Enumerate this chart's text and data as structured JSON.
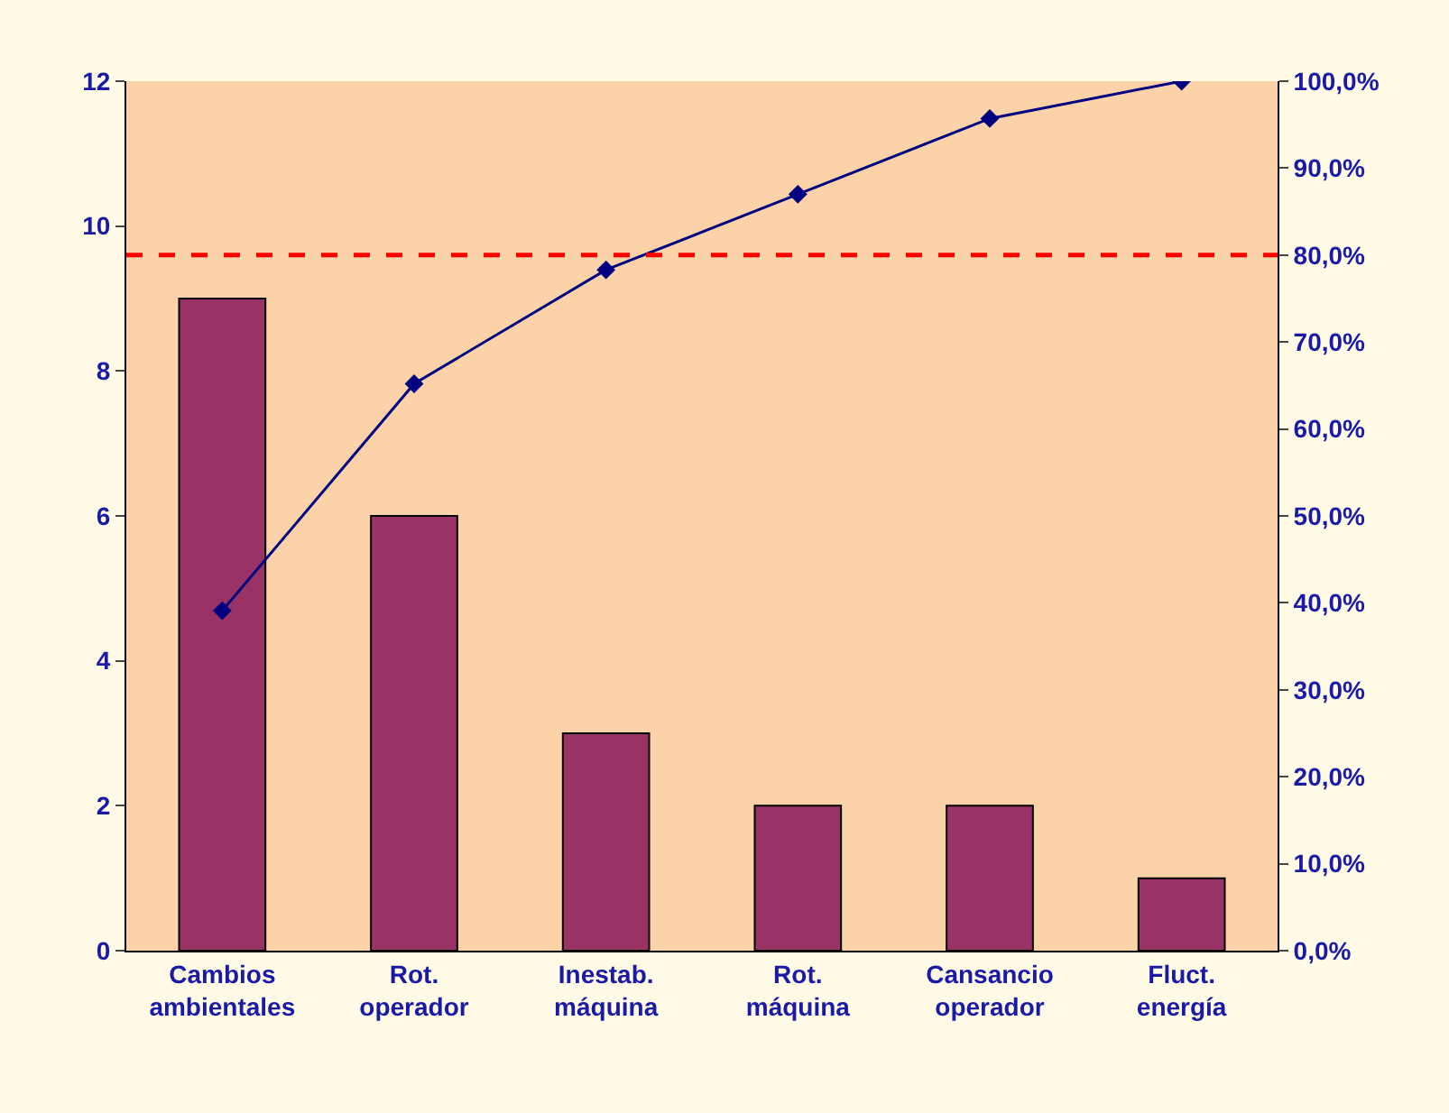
{
  "chart_data": {
    "type": "bar",
    "categories": [
      "Cambios ambientales",
      "Rot. operador",
      "Inestab. máquina",
      "Rot. máquina",
      "Cansancio operador",
      "Fluct. energía"
    ],
    "series": [
      {
        "color": "#993366",
        "values": [
          9,
          6,
          3,
          2,
          2,
          1
        ]
      },
      {
        "type": "line",
        "axis": "y2",
        "color": "#000080",
        "marker": "diamond",
        "values": [
          39.1,
          65.2,
          78.3,
          87.0,
          95.7,
          100.0
        ]
      }
    ],
    "ylim": [
      0,
      12
    ],
    "yticks": [
      0,
      2,
      4,
      6,
      8,
      10,
      12
    ],
    "y2lim": [
      0,
      100
    ],
    "y2ticks": [
      {
        "value": 0,
        "label": "0,0%"
      },
      {
        "value": 10,
        "label": "10,0%"
      },
      {
        "value": 20,
        "label": "20,0%"
      },
      {
        "value": 30,
        "label": "30,0%"
      },
      {
        "value": 40,
        "label": "40,0%"
      },
      {
        "value": 50,
        "label": "50,0%"
      },
      {
        "value": 60,
        "label": "60,0%"
      },
      {
        "value": 70,
        "label": "70,0%"
      },
      {
        "value": 80,
        "label": "80,0%"
      },
      {
        "value": 90,
        "label": "90,0%"
      },
      {
        "value": 100,
        "label": "100,0%"
      }
    ],
    "ref_lines": [
      {
        "axis": "y2",
        "value": 80,
        "color": "#ff0000",
        "line_style": "dashed"
      }
    ],
    "grid": false
  }
}
